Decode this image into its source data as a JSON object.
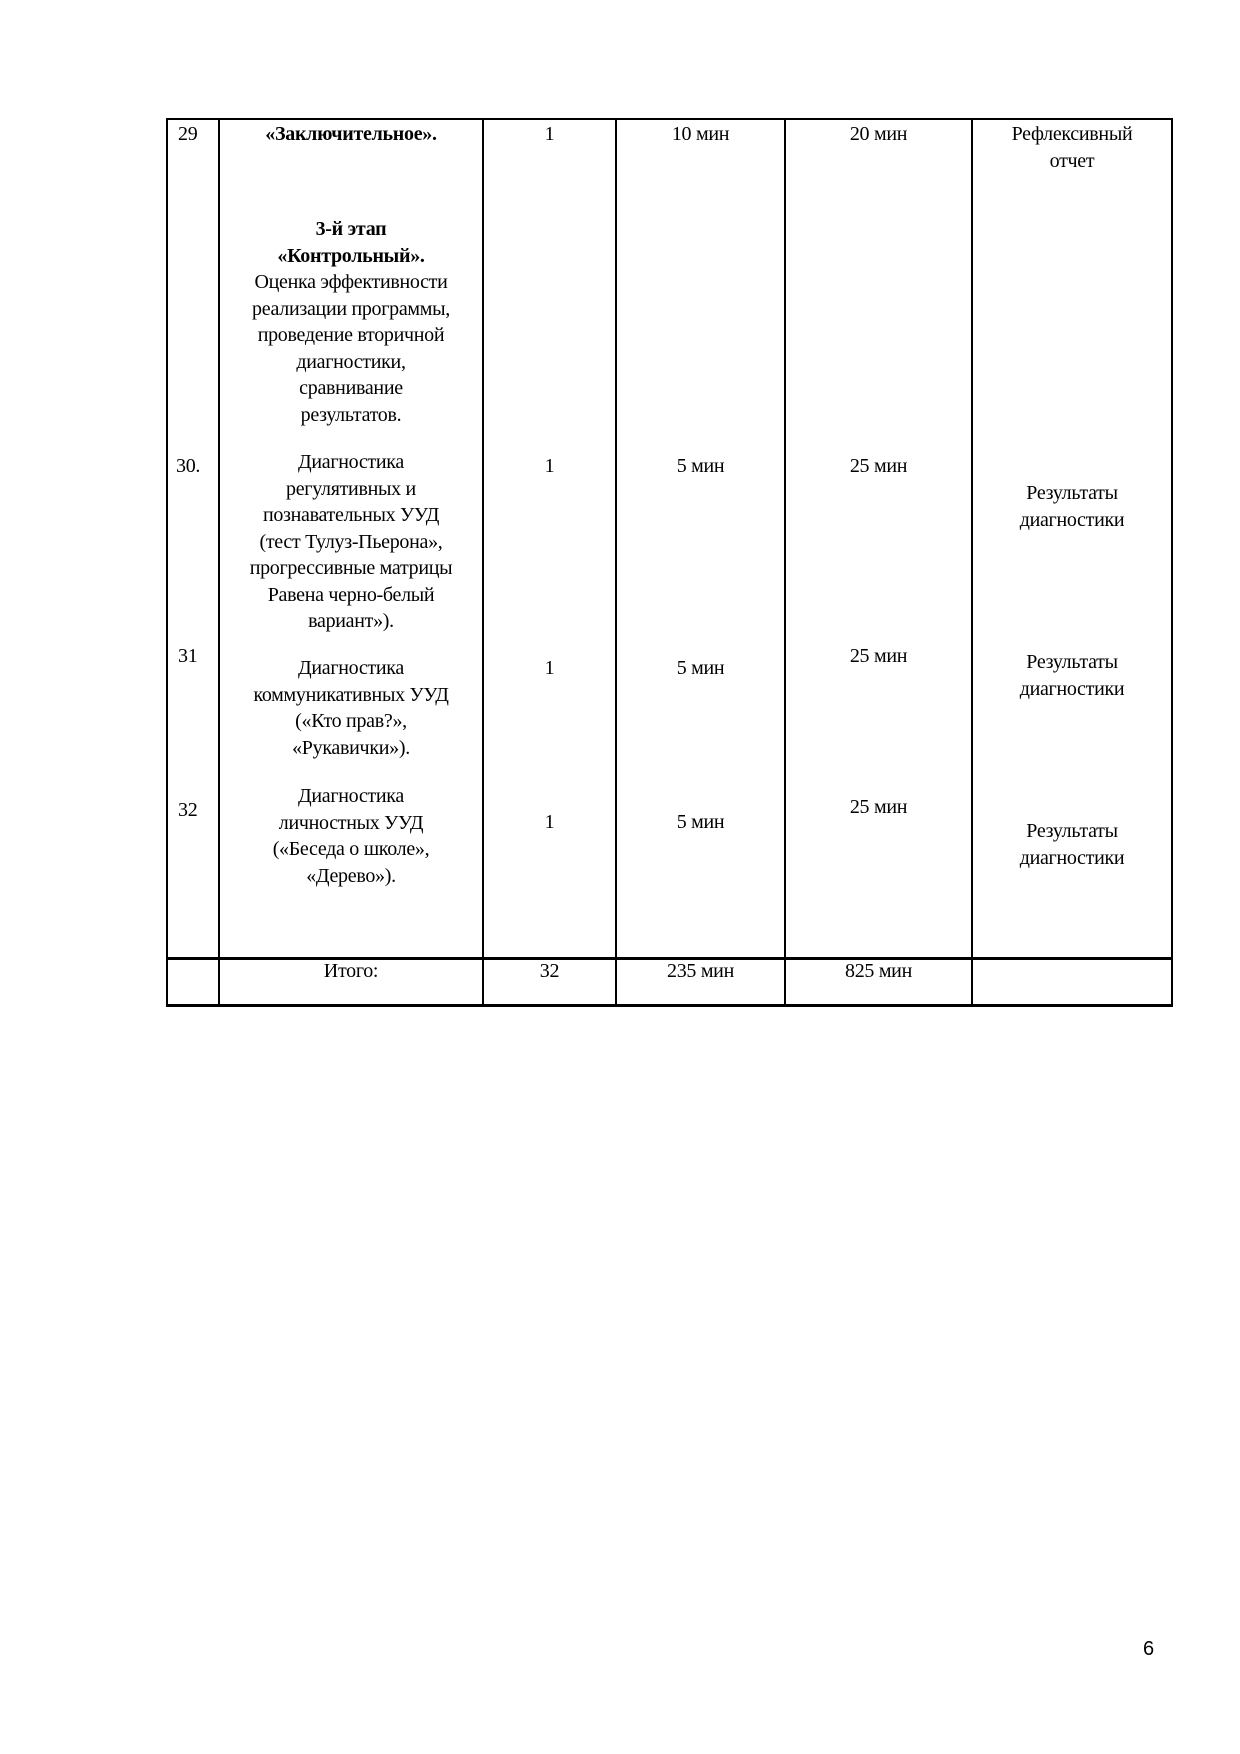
{
  "rows": [
    {
      "num": "29",
      "title": "«Заключительное».",
      "count": "1",
      "theory": "10 мин",
      "practice": "20 мин",
      "form": [
        "Рефлексивный",
        "отчет"
      ]
    },
    {
      "stage": [
        "3-й этап",
        "«Контрольный»."
      ],
      "stage_desc": [
        "Оценка эффективности",
        "реализации программы,",
        "проведение вторичной",
        "диагностики,",
        "сравнивание",
        "результатов."
      ]
    },
    {
      "num": "30.",
      "title": [
        "Диагностика",
        "регулятивных и",
        "познавательных УУД",
        "(тест Тулуз-Пьерона»,",
        "прогрессивные матрицы",
        "Равена черно-белый",
        "вариант»)."
      ],
      "count": "1",
      "theory": "5 мин",
      "practice": "25 мин",
      "form": [
        "Результаты",
        "диагностики"
      ]
    },
    {
      "num": "31",
      "title": [
        "Диагностика",
        "коммуникативных УУД",
        "(«Кто прав?»,",
        "«Рукавички»)."
      ],
      "count": "1",
      "theory": "5 мин",
      "practice": "25 мин",
      "form": [
        "Результаты",
        "диагностики"
      ]
    },
    {
      "num": "32",
      "title": [
        "Диагностика",
        "личностных УУД",
        "(«Беседа о школе»,",
        "«Дерево»)."
      ],
      "count": "1",
      "theory": "5 мин",
      "practice": "25 мин",
      "form": [
        "Результаты",
        "диагностики"
      ]
    }
  ],
  "total": {
    "label": "Итого:",
    "count": "32",
    "theory": "235 мин",
    "practice": "825 мин"
  },
  "page_number": "6"
}
